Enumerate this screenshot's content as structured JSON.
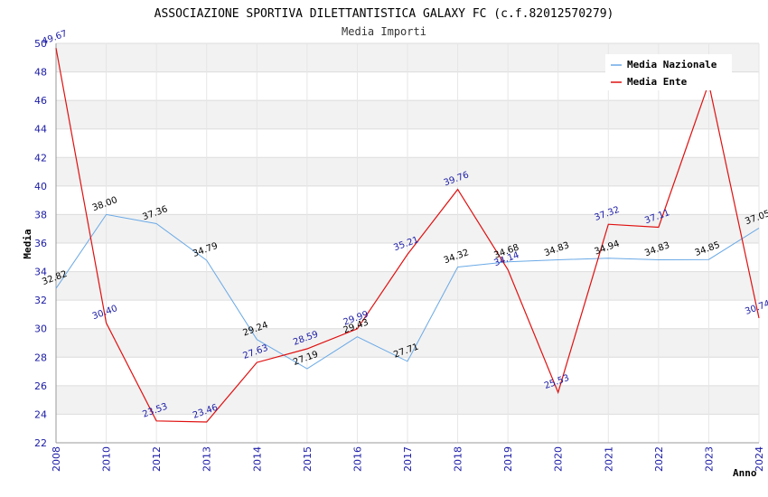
{
  "chart_data": {
    "type": "line",
    "title": "ASSOCIAZIONE SPORTIVA DILETTANTISTICA GALAXY FC (c.f.82012570279)",
    "subtitle": "Media Importi",
    "xlabel": "Anno",
    "ylabel": "Media",
    "categories": [
      "2008",
      "2010",
      "2012",
      "2013",
      "2014",
      "2015",
      "2016",
      "2017",
      "2018",
      "2019",
      "2020",
      "2021",
      "2022",
      "2023",
      "2024"
    ],
    "ylim": [
      22,
      50
    ],
    "yticks": [
      "22",
      "24",
      "26",
      "28",
      "30",
      "32",
      "34",
      "36",
      "38",
      "40",
      "42",
      "44",
      "46",
      "48",
      "50"
    ],
    "grid": true,
    "legend_position": "top-right",
    "series": [
      {
        "name": "Media Nazionale",
        "color": "#6aa9e6",
        "values": [
          32.82,
          38.0,
          37.36,
          34.79,
          29.24,
          27.19,
          29.43,
          27.71,
          34.32,
          34.68,
          34.83,
          34.94,
          34.83,
          34.85,
          37.05
        ],
        "labels": [
          "32.82",
          "38.00",
          "37.36",
          "34.79",
          "29.24",
          "27.19",
          "29.43",
          "27.71",
          "34.32",
          "34.68",
          "34.83",
          "34.94",
          "34.83",
          "34.85",
          "37.05"
        ]
      },
      {
        "name": "Media Ente",
        "color": "#e01010",
        "values": [
          49.67,
          30.4,
          23.53,
          23.46,
          27.63,
          28.59,
          29.99,
          35.21,
          39.76,
          34.14,
          25.53,
          37.32,
          37.11,
          47.2,
          30.74
        ],
        "labels": [
          "49.67",
          "30.40",
          "23.53",
          "23.46",
          "27.63",
          "28.59",
          "29.99",
          "35.21",
          "39.76",
          "34.14",
          "25.53",
          "37.32",
          "37.11",
          "",
          "30.74"
        ]
      }
    ]
  }
}
